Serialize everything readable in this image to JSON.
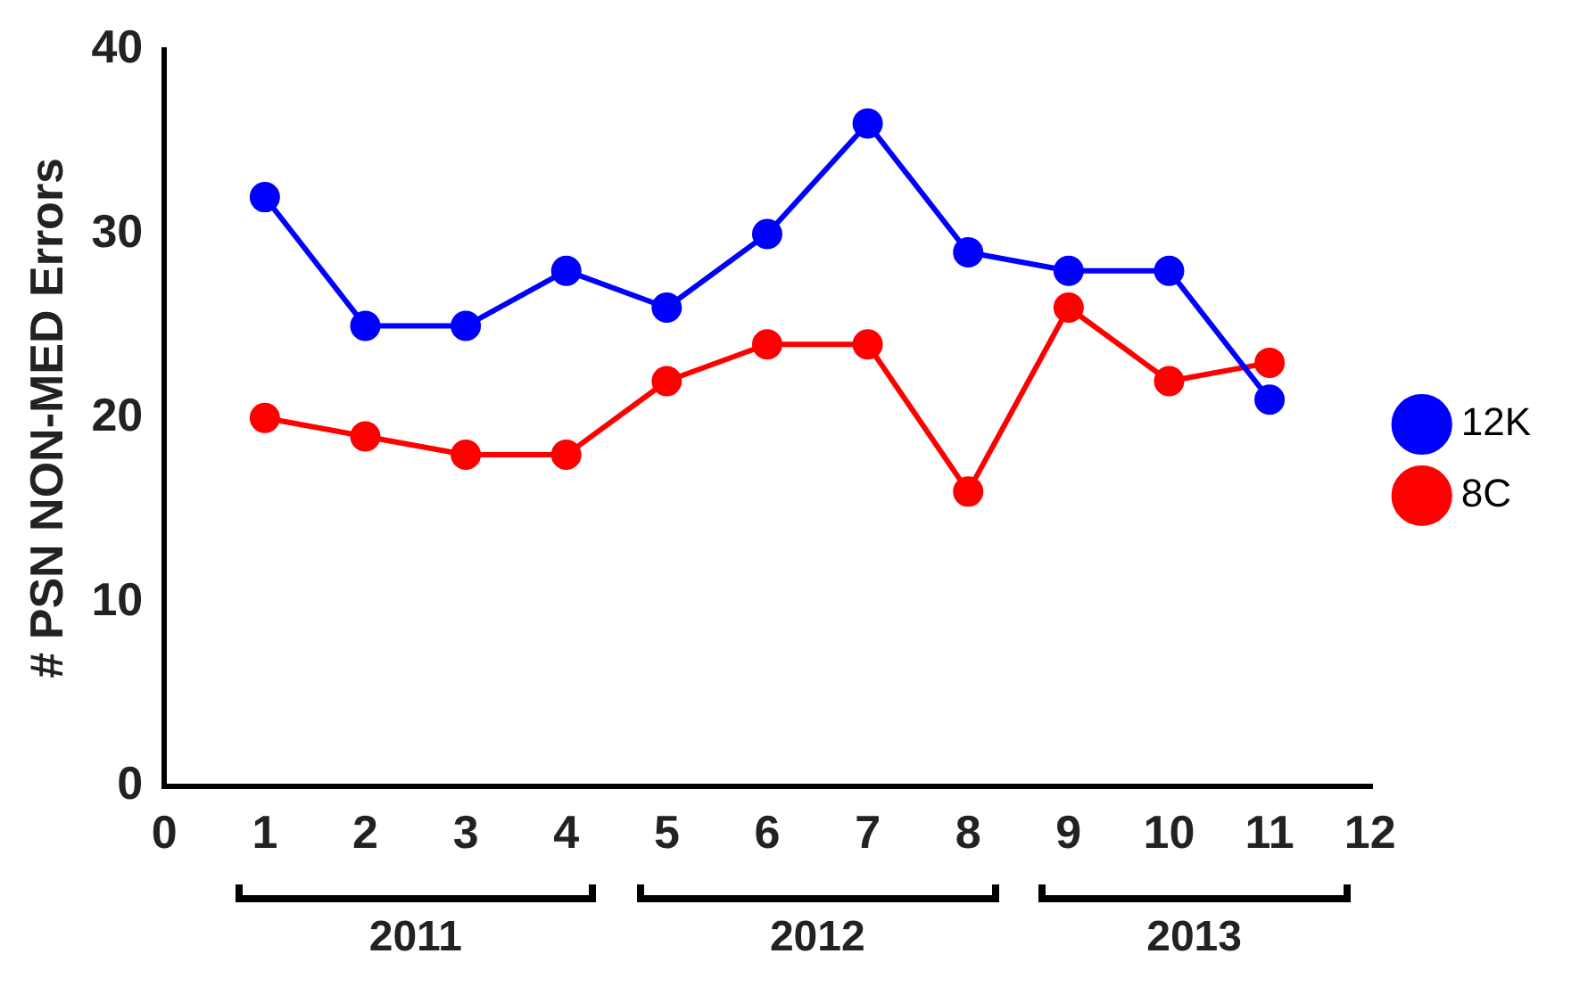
{
  "chart_data": {
    "type": "line",
    "ylabel": "# PSN NON-MED Errors",
    "x": [
      1,
      2,
      3,
      4,
      5,
      6,
      7,
      8,
      9,
      10,
      11
    ],
    "xlim": [
      0,
      12
    ],
    "xticks": [
      0,
      1,
      2,
      3,
      4,
      5,
      6,
      7,
      8,
      9,
      10,
      11,
      12
    ],
    "ylim": [
      0,
      40
    ],
    "yticks": [
      0,
      10,
      20,
      30,
      40
    ],
    "series": [
      {
        "name": "12K",
        "color": "#0000ff",
        "values": [
          32,
          25,
          25,
          28,
          26,
          30,
          36,
          29,
          28,
          28,
          21
        ]
      },
      {
        "name": "8C",
        "color": "#ff0000",
        "values": [
          20,
          19,
          18,
          18,
          22,
          24,
          24,
          16,
          26,
          22,
          23
        ]
      }
    ],
    "annotations": [
      "2011",
      "2012",
      "2013"
    ],
    "grid": false,
    "legend": "right",
    "marker": "circle",
    "line_style": "solid"
  }
}
